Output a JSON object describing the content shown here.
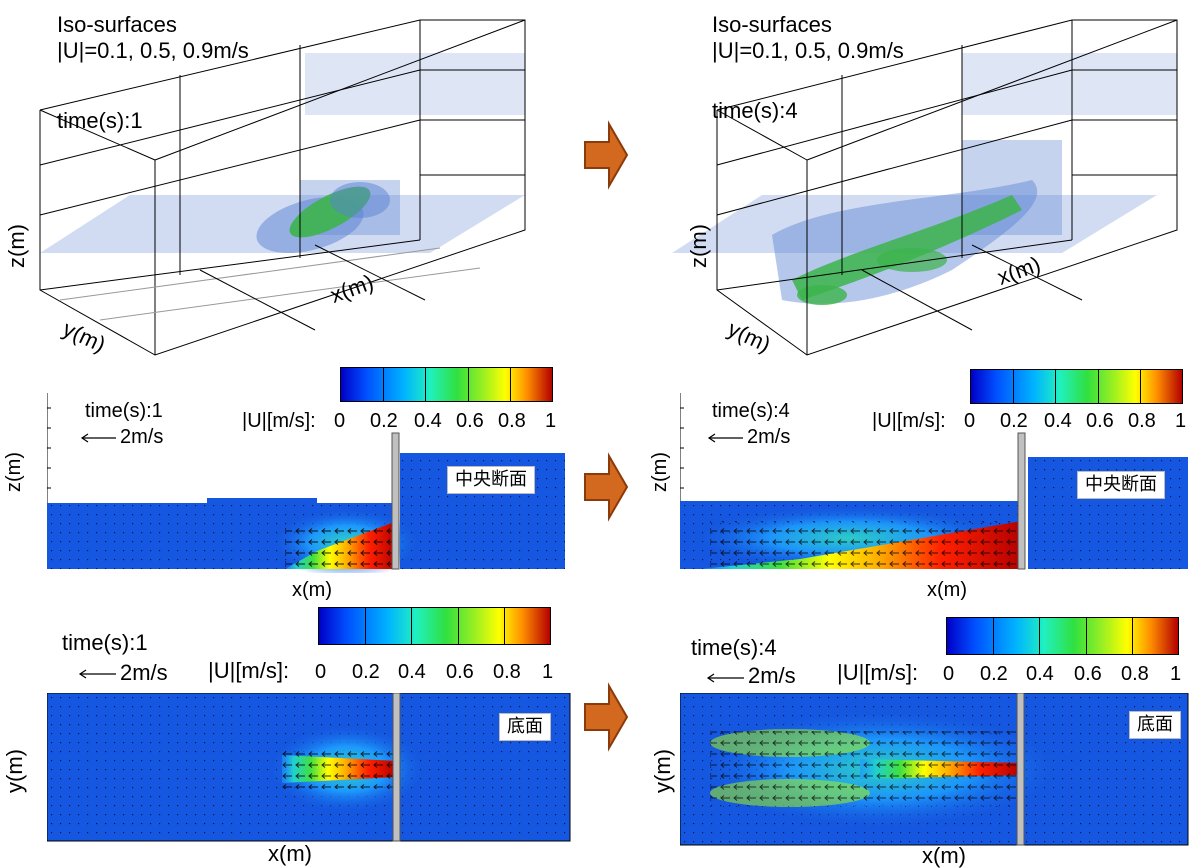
{
  "colors": {
    "field_low": "#1557e0",
    "colormap": [
      "#0000c8",
      "#0050ff",
      "#00b4ff",
      "#20f0c0",
      "#30e040",
      "#a0f020",
      "#ffff00",
      "#ff9000",
      "#ff2000",
      "#b40000"
    ],
    "flow_arrow_fill": "#d2691e",
    "flow_arrow_stroke": "#8b3a0a",
    "iso_blue": "#5a82d2",
    "iso_green": "#3cb44b",
    "wall_gray": "#c0c0c0"
  },
  "iso_panels": [
    {
      "title_line1": "Iso-surfaces",
      "title_line2": "|U|=0.1, 0.5, 0.9m/s",
      "time_label": "time(s):1",
      "xlabel": "x(m)",
      "ylabel": "y(m)",
      "zlabel": "z(m)"
    },
    {
      "title_line1": "Iso-surfaces",
      "title_line2": "|U|=0.1, 0.5, 0.9m/s",
      "time_label": "time(s):4",
      "xlabel": "x(m)",
      "ylabel": "y(m)",
      "zlabel": "z(m)"
    }
  ],
  "section_panels": [
    {
      "time_label": "time(s):1",
      "scale_label": "2m/s",
      "cbar_label": "|U|[m/s]:",
      "cbar_ticks": [
        "0",
        "0.2",
        "0.4",
        "0.6",
        "0.8",
        "1"
      ],
      "xlabel": "x(m)",
      "ylabel": "z(m)",
      "section_tag": "中央断面"
    },
    {
      "time_label": "time(s):4",
      "scale_label": "2m/s",
      "cbar_label": "|U|[m/s]:",
      "cbar_ticks": [
        "0",
        "0.2",
        "0.4",
        "0.6",
        "0.8",
        "1"
      ],
      "xlabel": "x(m)",
      "ylabel": "z(m)",
      "section_tag": "中央断面"
    }
  ],
  "bottom_panels": [
    {
      "time_label": "time(s):1",
      "scale_label": "2m/s",
      "cbar_label": "|U|[m/s]:",
      "cbar_ticks": [
        "0",
        "0.2",
        "0.4",
        "0.6",
        "0.8",
        "1"
      ],
      "xlabel": "x(m)",
      "ylabel": "y(m)",
      "section_tag": "底面"
    },
    {
      "time_label": "time(s):4",
      "scale_label": "2m/s",
      "cbar_label": "|U|[m/s]:",
      "cbar_ticks": [
        "0",
        "0.2",
        "0.4",
        "0.6",
        "0.8",
        "1"
      ],
      "xlabel": "x(m)",
      "ylabel": "y(m)",
      "section_tag": "底面"
    }
  ],
  "icons": {
    "time_transition": "right-arrow-icon",
    "velocity_scale": "left-arrow-icon"
  }
}
